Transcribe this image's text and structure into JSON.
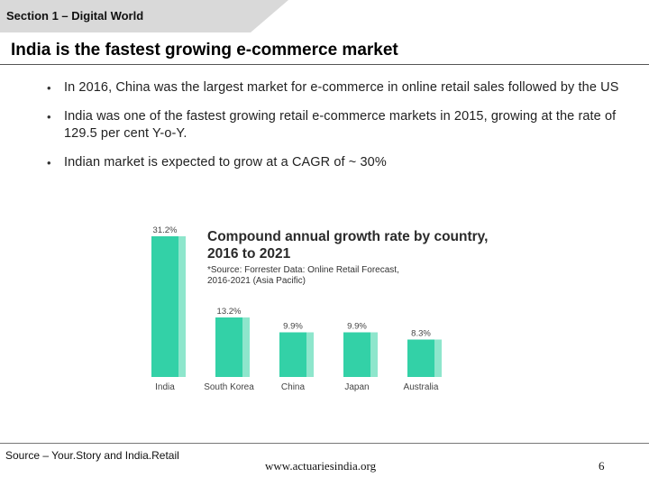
{
  "section": {
    "label": "Section 1 – Digital World"
  },
  "slide": {
    "title": "India is the fastest growing e-commerce market"
  },
  "bullets": [
    "In 2016, China was the largest market for e-commerce in online retail sales followed by the US",
    "India was one of the fastest growing retail e-commerce markets in 2015, growing at the rate of 129.5 per cent Y-o-Y.",
    "Indian market is expected to  grow at a CAGR of ~ 30%"
  ],
  "chart_data": {
    "type": "bar",
    "title": "Compound annual growth rate by country, 2016 to 2021",
    "note": "*Source: Forrester Data: Online Retail Forecast, 2016-2021 (Asia Pacific)",
    "categories": [
      "India",
      "South Korea",
      "China",
      "Japan",
      "Australia"
    ],
    "values": [
      31.2,
      13.2,
      9.9,
      9.9,
      8.3
    ],
    "value_labels": [
      "31.2%",
      "13.2%",
      "9.9%",
      "9.9%",
      "8.3%"
    ],
    "ylim": [
      0,
      32
    ],
    "grid": false,
    "bar_color": "#33d1a7",
    "bar_edge_color": "#8ee6cc"
  },
  "footer": {
    "source": "Source – Your.Story and India.Retail",
    "website": "www.actuariesindia.org",
    "page": "6"
  },
  "colors": {
    "tab_gray": "#d9d9d9",
    "rule": "#555555"
  }
}
